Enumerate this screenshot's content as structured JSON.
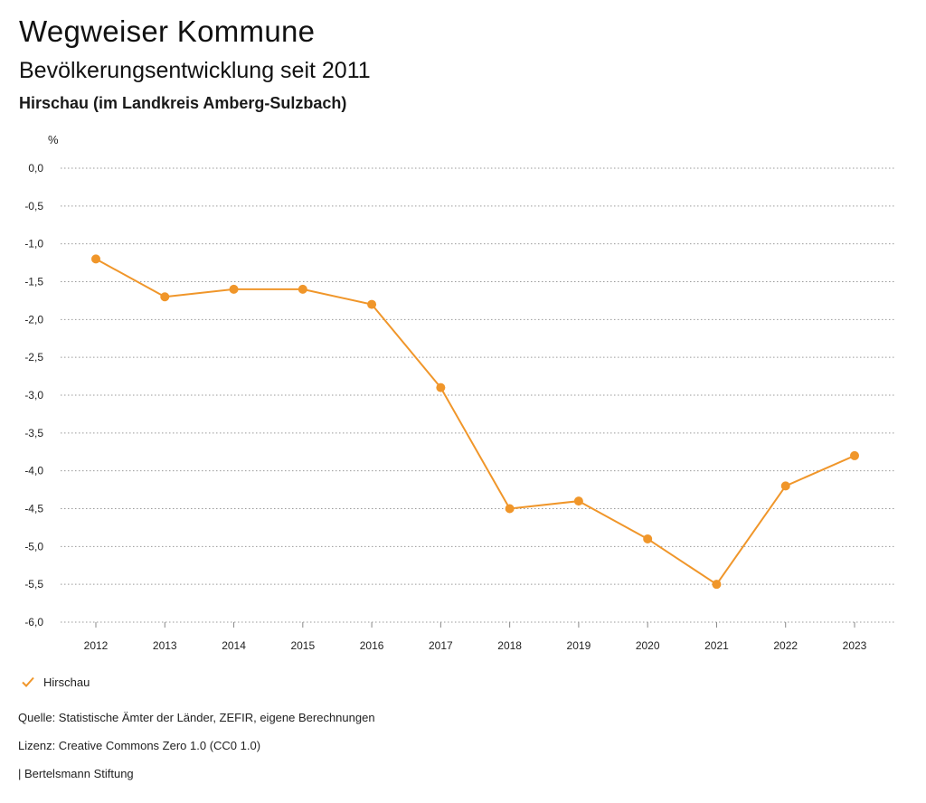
{
  "header": {
    "title": "Wegweiser Kommune",
    "subtitle": "Bevölkerungsentwicklung seit 2011",
    "location": "Hirschau (im Landkreis Amberg-Sulzbach)"
  },
  "footer": {
    "source": "Quelle: Statistische Ämter der Länder, ZEFIR, eigene Berechnungen",
    "license": "Lizenz: Creative Commons Zero 1.0 (CC0 1.0)",
    "credit": "| Bertelsmann Stiftung"
  },
  "chart_data": {
    "type": "line",
    "ylabel": "%",
    "xlabel": "",
    "x": [
      "2012",
      "2013",
      "2014",
      "2015",
      "2016",
      "2017",
      "2018",
      "2019",
      "2020",
      "2021",
      "2022",
      "2023"
    ],
    "ylim": [
      -6.0,
      0.0
    ],
    "yticks": [
      "0,0",
      "-0,5",
      "-1,0",
      "-1,5",
      "-2,0",
      "-2,5",
      "-3,0",
      "-3,5",
      "-4,0",
      "-4,5",
      "-5,0",
      "-5,5",
      "-6,0"
    ],
    "ytick_values": [
      0.0,
      -0.5,
      -1.0,
      -1.5,
      -2.0,
      -2.5,
      -3.0,
      -3.5,
      -4.0,
      -4.5,
      -5.0,
      -5.5,
      -6.0
    ],
    "grid": "horizontal dotted",
    "legend_position": "bottom-left",
    "series": [
      {
        "name": "Hirschau",
        "color": "#f0962a",
        "values": [
          -1.2,
          -1.7,
          -1.6,
          -1.6,
          -1.8,
          -2.9,
          -4.5,
          -4.4,
          -4.9,
          -5.5,
          -4.2,
          -3.8
        ]
      }
    ]
  }
}
